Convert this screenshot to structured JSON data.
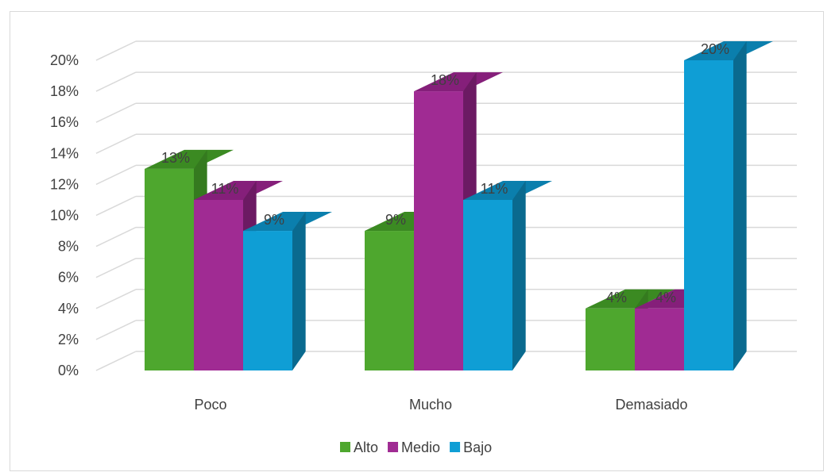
{
  "chart_data": {
    "type": "bar",
    "style": "3d-clustered-column",
    "categories": [
      "Poco",
      "Mucho",
      "Demasiado"
    ],
    "series": [
      {
        "name": "Alto",
        "values": [
          13,
          9,
          4
        ],
        "labels": [
          "13%",
          "9%",
          "4%"
        ],
        "color": "#4ea72e",
        "top_color": "#3b8a22",
        "side_color": "#357a1f"
      },
      {
        "name": "Medio",
        "values": [
          11,
          18,
          4
        ],
        "labels": [
          "11%",
          "18%",
          "4%"
        ],
        "color": "#a02b93",
        "top_color": "#851f7a",
        "side_color": "#6c1a63"
      },
      {
        "name": "Bajo",
        "values": [
          9,
          11,
          20
        ],
        "labels": [
          "9%",
          "11%",
          "20%"
        ],
        "color": "#0f9ed5",
        "top_color": "#0b7fad",
        "side_color": "#0a6a8f"
      }
    ],
    "y_ticks": [
      "0%",
      "2%",
      "4%",
      "6%",
      "8%",
      "10%",
      "12%",
      "14%",
      "16%",
      "18%",
      "20%"
    ],
    "ylim": [
      0,
      20
    ],
    "title": "",
    "xlabel": "",
    "ylabel": "",
    "grid": true,
    "legend": "bottom",
    "colors": {
      "grid": "#d9d9d9",
      "text": "#404040",
      "border": "#d9d9d9"
    }
  }
}
